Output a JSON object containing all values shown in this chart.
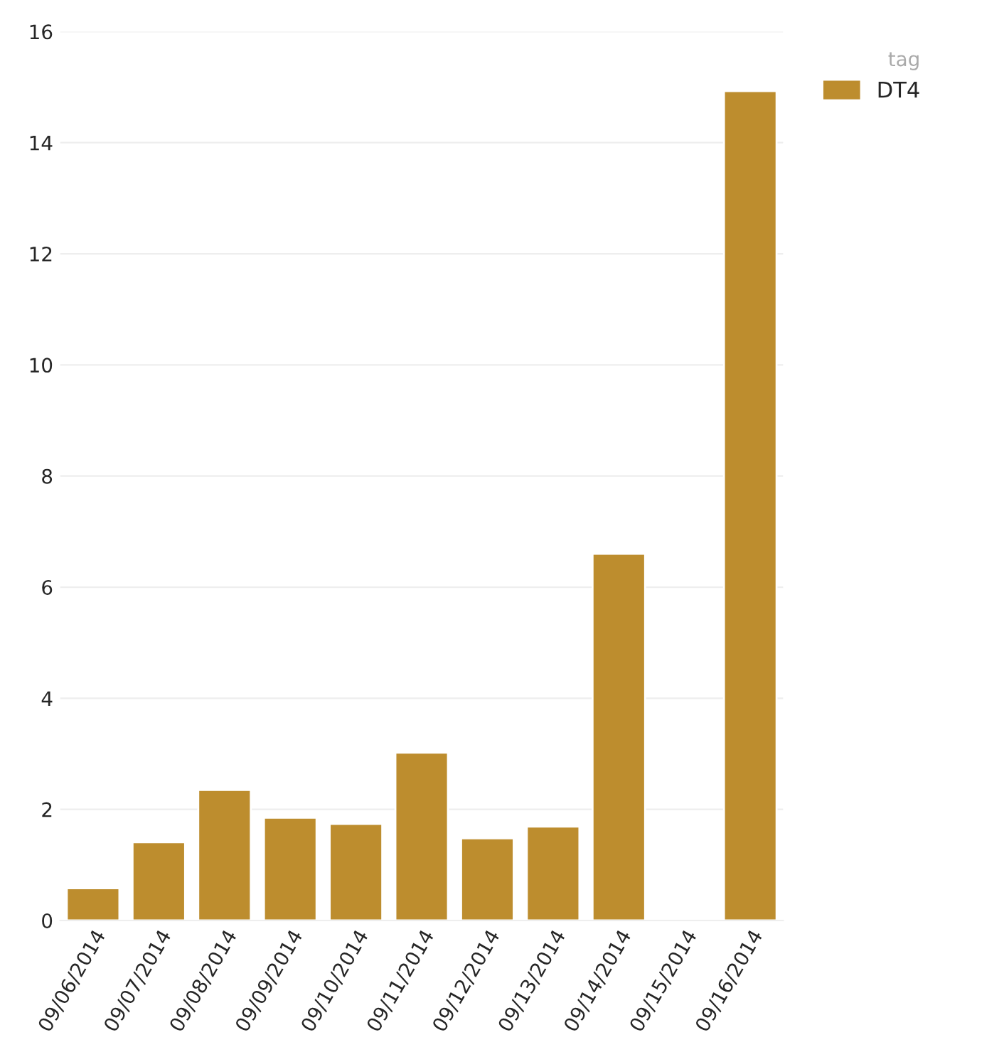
{
  "chart_data": {
    "type": "bar",
    "categories": [
      "09/06/2014",
      "09/07/2014",
      "09/08/2014",
      "09/09/2014",
      "09/10/2014",
      "09/11/2014",
      "09/12/2014",
      "09/13/2014",
      "09/14/2014",
      "09/15/2014",
      "09/16/2014"
    ],
    "series": [
      {
        "name": "DT4",
        "color": "#bd8d2e",
        "values": [
          0.58,
          1.41,
          2.35,
          1.85,
          1.74,
          3.02,
          1.48,
          1.69,
          6.6,
          null,
          14.93
        ]
      }
    ],
    "legend_title": "tag",
    "ylim": [
      0,
      16
    ],
    "yticks": [
      0,
      2,
      4,
      6,
      8,
      10,
      12,
      14,
      16
    ],
    "grid": "y",
    "legend": "top right"
  }
}
